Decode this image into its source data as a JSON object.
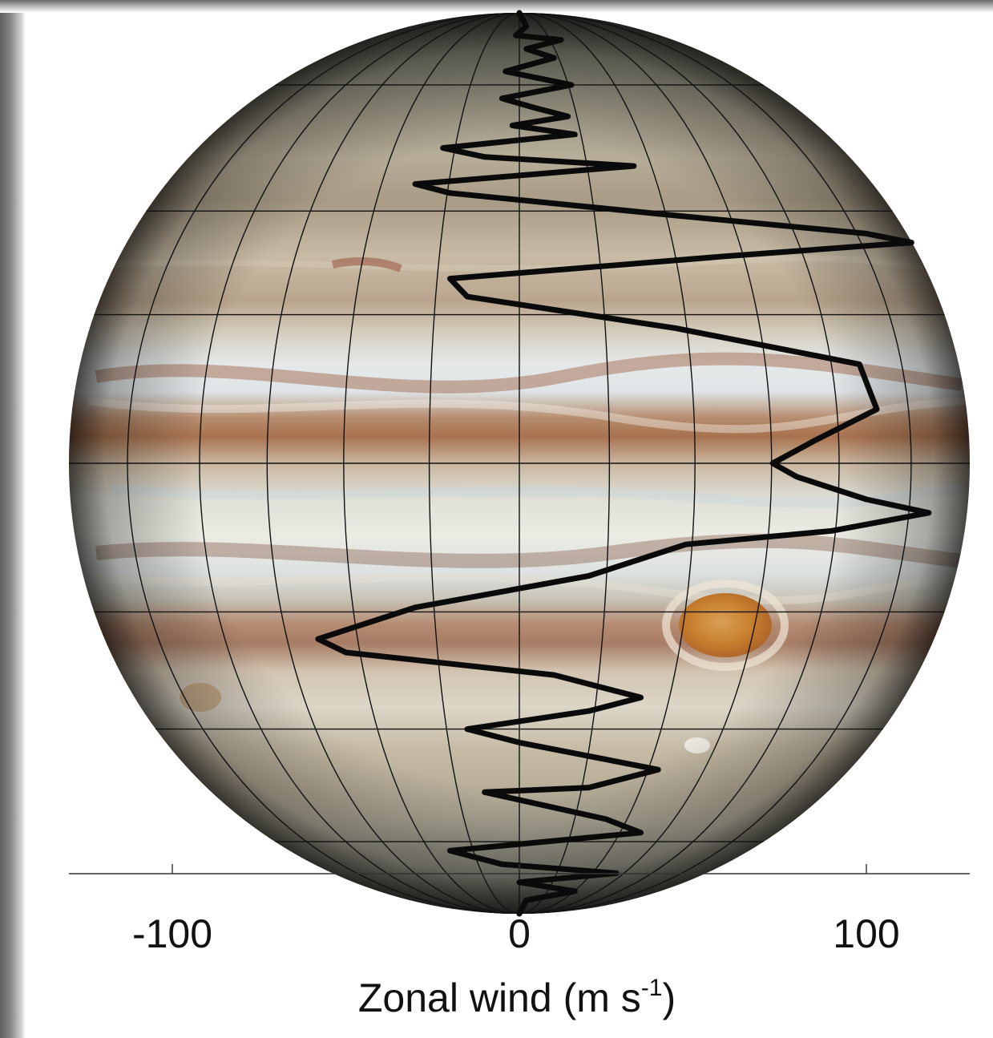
{
  "chart_data": {
    "type": "line",
    "title": "",
    "xlabel": "Zonal wind (m s",
    "xlabel_superscript": "-1",
    "xlabel_suffix": ")",
    "xlim": [
      -130,
      130
    ],
    "xticks": [
      -100,
      0,
      100
    ],
    "xtick_labels": [
      "-100",
      "0",
      "100"
    ],
    "ylabel": "",
    "background": "Jupiter globe with latitude/longitude grid",
    "colors": {
      "line": "#0a0a0a",
      "grid": "#111111",
      "axis": "#333333"
    },
    "series": [
      {
        "values": [
          [
            0,
            1
          ],
          [
            2,
            0.97
          ],
          [
            -1,
            0.95
          ],
          [
            12,
            0.94
          ],
          [
            2,
            0.92
          ],
          [
            10,
            0.9
          ],
          [
            -4,
            0.87
          ],
          [
            15,
            0.84
          ],
          [
            -5,
            0.81
          ],
          [
            4,
            0.79
          ],
          [
            14,
            0.77
          ],
          [
            -2,
            0.75
          ],
          [
            16,
            0.73
          ],
          [
            -22,
            0.7
          ],
          [
            -10,
            0.68
          ],
          [
            33,
            0.66
          ],
          [
            -30,
            0.62
          ],
          [
            -20,
            0.6
          ],
          [
            45,
            0.55
          ],
          [
            100,
            0.51
          ],
          [
            113,
            0.49
          ],
          [
            60,
            0.46
          ],
          [
            -20,
            0.41
          ],
          [
            -15,
            0.37
          ],
          [
            45,
            0.3
          ],
          [
            98,
            0.22
          ],
          [
            103,
            0.12
          ],
          [
            85,
            0.05
          ],
          [
            73,
            0.0
          ],
          [
            80,
            -0.03
          ],
          [
            100,
            -0.08
          ],
          [
            118,
            -0.11
          ],
          [
            90,
            -0.15
          ],
          [
            48,
            -0.18
          ],
          [
            20,
            -0.25
          ],
          [
            -30,
            -0.32
          ],
          [
            -58,
            -0.39
          ],
          [
            -50,
            -0.42
          ],
          [
            10,
            -0.47
          ],
          [
            35,
            -0.52
          ],
          [
            20,
            -0.55
          ],
          [
            -15,
            -0.59
          ],
          [
            0,
            -0.62
          ],
          [
            40,
            -0.68
          ],
          [
            20,
            -0.72
          ],
          [
            -10,
            -0.73
          ],
          [
            25,
            -0.79
          ],
          [
            35,
            -0.82
          ],
          [
            -20,
            -0.86
          ],
          [
            -5,
            -0.89
          ],
          [
            28,
            -0.91
          ],
          [
            0,
            -0.93
          ],
          [
            16,
            -0.95
          ],
          [
            2,
            -0.97
          ],
          [
            0,
            -1
          ]
        ]
      }
    ]
  }
}
